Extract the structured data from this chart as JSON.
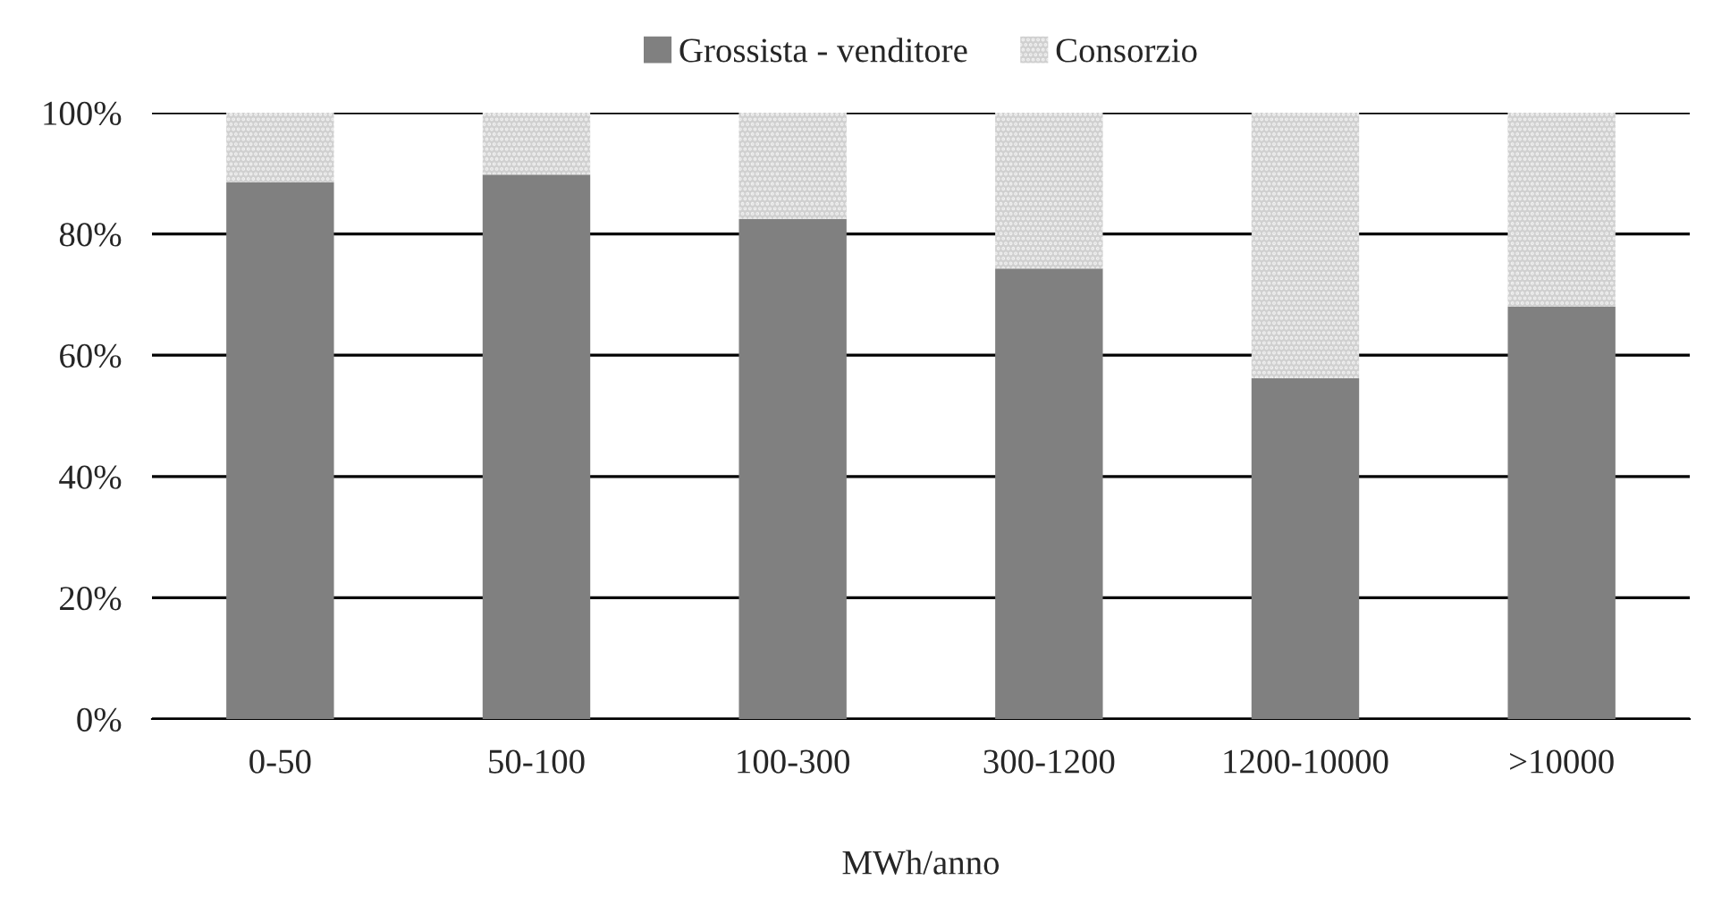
{
  "chart_data": {
    "type": "bar",
    "stacked": true,
    "xlabel": "MWh/anno",
    "categories": [
      "0-50",
      "50-100",
      "100-300",
      "300-1200",
      "1200-10000",
      ">10000"
    ],
    "series": [
      {
        "name": "Grossista - venditore",
        "color": "#808080",
        "values": [
          88.5,
          89.8,
          82.5,
          74.3,
          56.2,
          68
        ]
      },
      {
        "name": "Consorzio",
        "color": "#d0d0d0",
        "values": [
          11.5,
          10.2,
          17.5,
          25.7,
          43.8,
          32
        ]
      }
    ],
    "ylim": [
      0,
      100
    ],
    "yticks": [
      {
        "value": 0,
        "label": "0%"
      },
      {
        "value": 20,
        "label": "20%"
      },
      {
        "value": 40,
        "label": "40%"
      },
      {
        "value": 60,
        "label": "60%"
      },
      {
        "value": 80,
        "label": "80%"
      },
      {
        "value": 100,
        "label": "100%"
      }
    ],
    "grid": "y",
    "legend": "top"
  }
}
